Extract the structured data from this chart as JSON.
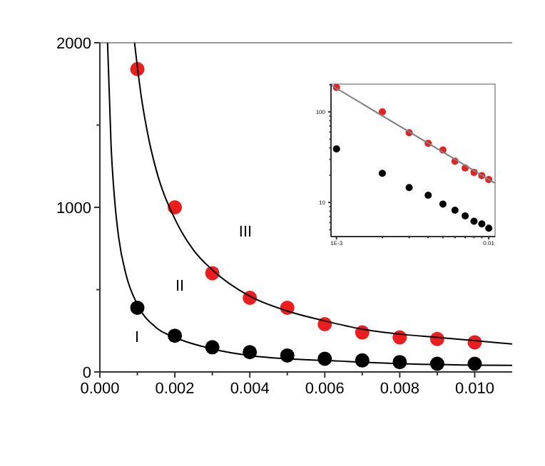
{
  "chart_data": [
    {
      "type": "scatter",
      "xlim": [
        0,
        0.011
      ],
      "ylim": [
        0,
        2000
      ],
      "xticks": [
        {
          "value": 0,
          "label": "0.000"
        },
        {
          "value": 0.001,
          "label": null
        },
        {
          "value": 0.002,
          "label": "0.002"
        },
        {
          "value": 0.003,
          "label": null
        },
        {
          "value": 0.004,
          "label": "0.004"
        },
        {
          "value": 0.005,
          "label": null
        },
        {
          "value": 0.006,
          "label": "0.006"
        },
        {
          "value": 0.007,
          "label": null
        },
        {
          "value": 0.008,
          "label": "0.008"
        },
        {
          "value": 0.009,
          "label": null
        },
        {
          "value": 0.01,
          "label": "0.010"
        }
      ],
      "yticks": [
        0,
        {
          "value": 500,
          "label": null
        },
        1000,
        {
          "value": 1500,
          "label": null
        },
        2000
      ],
      "x": [
        0.001,
        0.002,
        0.003,
        0.004,
        0.005,
        0.006,
        0.007,
        0.008,
        0.009,
        0.01
      ],
      "series": [
        {
          "color": "#ee1c1c",
          "marker": "circle",
          "values": [
            1840,
            1000,
            600,
            450,
            390,
            290,
            240,
            210,
            200,
            180
          ]
        },
        {
          "color": "#000000",
          "marker": "circle",
          "values": [
            390,
            220,
            150,
            120,
            100,
            80,
            70,
            60,
            50,
            50
          ]
        },
        {
          "type": "line",
          "marker": "none",
          "color": "#000000",
          "x": [
            0.000925,
            0.0011,
            0.0013,
            0.0015,
            0.002,
            0.0025,
            0.003,
            0.004,
            0.005,
            0.006,
            0.007,
            0.008,
            0.009,
            0.01,
            0.011
          ],
          "values": [
            2000,
            1680,
            1420,
            1230,
            930,
            740,
            620,
            460,
            370,
            310,
            260,
            230,
            210,
            190,
            170
          ]
        },
        {
          "type": "line",
          "marker": "none",
          "color": "#000000",
          "x": [
            0.000205,
            0.0003,
            0.0004,
            0.0005,
            0.0007,
            0.001,
            0.0015,
            0.002,
            0.003,
            0.004,
            0.005,
            0.006,
            0.008,
            0.011
          ],
          "values": [
            2000,
            1370,
            1030,
            820,
            590,
            410,
            270,
            210,
            140,
            100,
            80,
            70,
            50,
            40
          ]
        }
      ],
      "annotations": [
        "I",
        "II",
        "III"
      ]
    },
    {
      "type": "scatter",
      "log": "xy",
      "xlim": [
        0.00092,
        0.011
      ],
      "ylim": [
        4.2,
        203
      ],
      "xticks": [
        {
          "value": 0.001,
          "label": "1E-3"
        },
        {
          "value": 0.002,
          "label": null
        },
        {
          "value": 0.003,
          "label": null
        },
        {
          "value": 0.004,
          "label": null
        },
        {
          "value": 0.005,
          "label": null
        },
        {
          "value": 0.006,
          "label": null
        },
        {
          "value": 0.007,
          "label": null
        },
        {
          "value": 0.008,
          "label": null
        },
        {
          "value": 0.009,
          "label": null
        },
        0.01
      ],
      "yticks": [
        {
          "value": 5,
          "label": null
        },
        {
          "value": 6,
          "label": null
        },
        {
          "value": 7,
          "label": null
        },
        {
          "value": 8,
          "label": null
        },
        {
          "value": 9,
          "label": null
        },
        10,
        {
          "value": 20,
          "label": null
        },
        {
          "value": 30,
          "label": null
        },
        {
          "value": 40,
          "label": null
        },
        {
          "value": 50,
          "label": null
        },
        {
          "value": 60,
          "label": null
        },
        {
          "value": 70,
          "label": null
        },
        {
          "value": 80,
          "label": null
        },
        {
          "value": 90,
          "label": null
        },
        100,
        {
          "value": 200,
          "label": null
        }
      ],
      "x": [
        0.001,
        0.002,
        0.003,
        0.004,
        0.005,
        0.006,
        0.007,
        0.008,
        0.009,
        0.01
      ],
      "series": [
        {
          "color": "#ee1c1c",
          "marker": "circle",
          "values": [
            186,
            100,
            59,
            45,
            38,
            28.5,
            24,
            21.5,
            19.8,
            17.9
          ]
        },
        {
          "color": "#000000",
          "marker": "circle",
          "values": [
            39,
            21,
            14.6,
            12,
            9.6,
            8.2,
            7.1,
            6.2,
            5.8,
            5.2
          ]
        },
        {
          "type": "line",
          "marker": "none",
          "color": "#808080",
          "x": [
            0.00092,
            0.011
          ],
          "values": [
            198,
            16.3
          ]
        }
      ]
    }
  ]
}
